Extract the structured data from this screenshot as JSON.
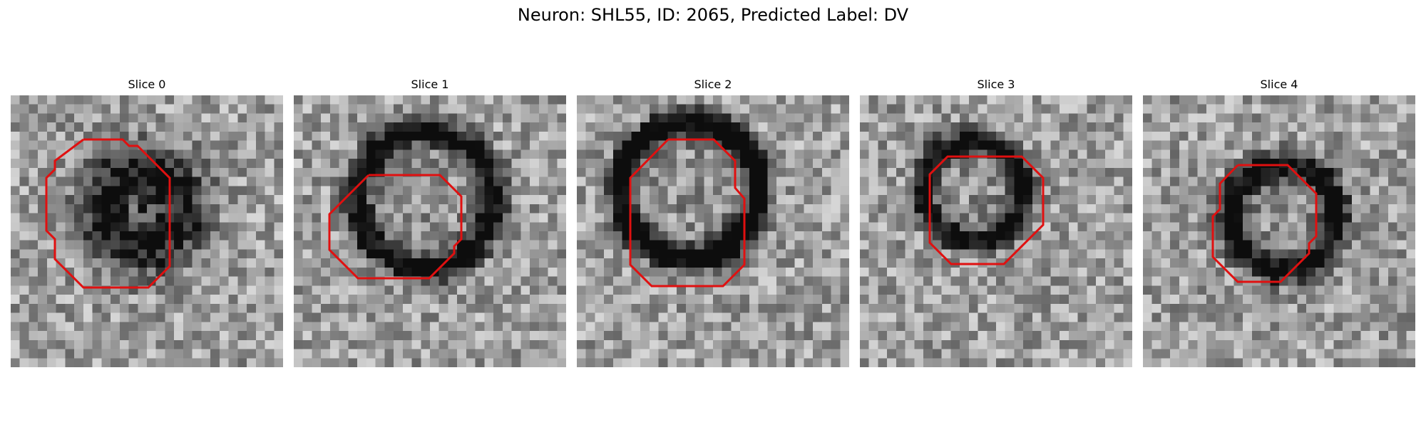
{
  "figure": {
    "title": "Neuron: SHL55, ID: 2065, Predicted Label: DV"
  },
  "panels": [
    {
      "title": "Slice 0"
    },
    {
      "title": "Slice 1"
    },
    {
      "title": "Slice 2"
    },
    {
      "title": "Slice 3"
    },
    {
      "title": "Slice 4"
    }
  ],
  "colors": {
    "outline": "#e01010",
    "background": "#ffffff"
  }
}
